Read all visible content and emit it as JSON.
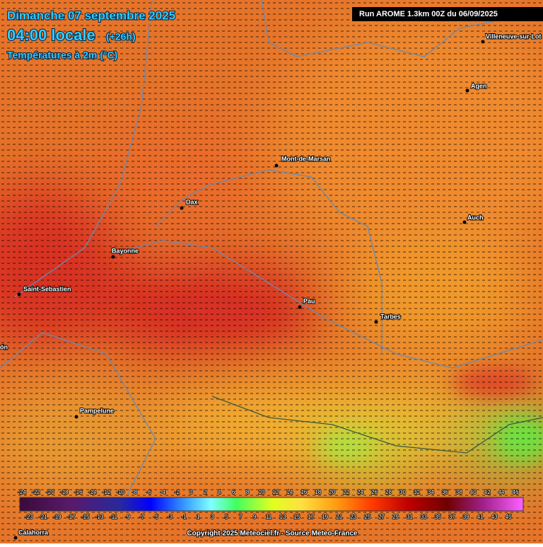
{
  "header": {
    "date": "Dimanche 07 septembre 2025",
    "time": "04:00 locale",
    "offset": "(+26h)",
    "parameter": "Températures à 2m (°C)",
    "run": "Run AROME 1.3km 00Z du 06/09/2025"
  },
  "cities": [
    "Villeneuve-sur-Lot",
    "Agen",
    "Mont-de-Marsan",
    "Dax",
    "Auch",
    "Bayonne",
    "Saint-Sebastien",
    "Pau",
    "Tarbes",
    "Pampelune",
    "Calahorra",
    "ón"
  ],
  "legend": {
    "top_labels": [
      -24,
      -22,
      -20,
      -18,
      -16,
      -14,
      -12,
      -10,
      -8,
      -6,
      -4,
      -2,
      0,
      2,
      4,
      6,
      8,
      10,
      12,
      14,
      16,
      18,
      20,
      22,
      24,
      26,
      28,
      30,
      32,
      34,
      36,
      38,
      40,
      42,
      44,
      46
    ],
    "bottom_labels": [
      -23,
      -21,
      -19,
      -17,
      -15,
      -13,
      -11,
      -9,
      -7,
      -5,
      -3,
      -1,
      1,
      3,
      5,
      7,
      9,
      11,
      13,
      15,
      17,
      19,
      21,
      23,
      25,
      27,
      29,
      31,
      33,
      35,
      37,
      39,
      41,
      43,
      45
    ]
  },
  "copyright": "Copyright 2025 Meteociel.fr - Source Meteo-France"
}
